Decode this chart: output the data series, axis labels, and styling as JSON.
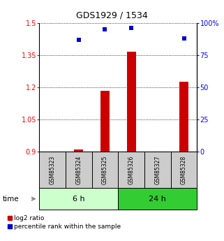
{
  "title": "GDS1929 / 1534",
  "samples": [
    "GSM85323",
    "GSM85324",
    "GSM85325",
    "GSM85326",
    "GSM85327",
    "GSM85328"
  ],
  "log2_ratio": [
    0.9,
    0.912,
    1.185,
    1.365,
    0.9,
    1.225
  ],
  "percentile_rank": [
    null,
    87.0,
    95.0,
    96.0,
    null,
    88.0
  ],
  "ylim_left": [
    0.9,
    1.5
  ],
  "ylim_right": [
    0,
    100
  ],
  "yticks_left": [
    0.9,
    1.05,
    1.2,
    1.35,
    1.5
  ],
  "yticks_right": [
    0,
    25,
    50,
    75,
    100
  ],
  "ytick_labels_right": [
    "0",
    "25",
    "50",
    "75",
    "100%"
  ],
  "bar_color": "#cc0000",
  "scatter_color": "#0000cc",
  "group_labels": [
    "6 h",
    "24 h"
  ],
  "group_ranges": [
    [
      0,
      3
    ],
    [
      3,
      6
    ]
  ],
  "group_colors": [
    "#ccffcc",
    "#33cc33"
  ],
  "sample_box_color": "#cccccc",
  "background_color": "#ffffff",
  "legend_log2": "log2 ratio",
  "legend_pct": "percentile rank within the sample",
  "bar_width": 0.35,
  "baseline": 0.9
}
